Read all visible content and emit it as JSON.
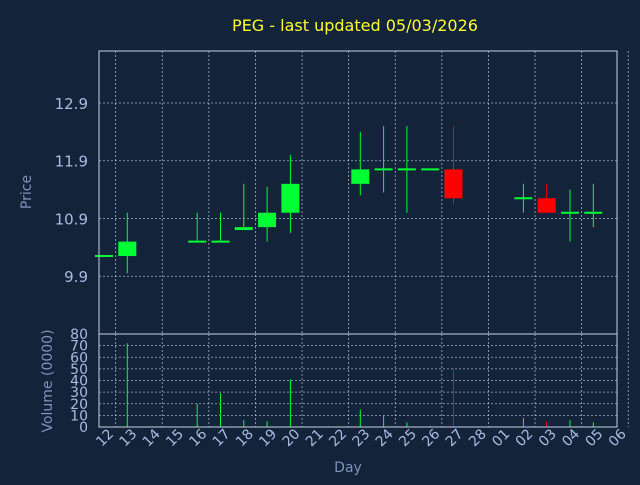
{
  "colors": {
    "background": "#12233a",
    "title": "#ffff33",
    "axis_label": "#7d93bb",
    "tick_label": "#a9bce0",
    "grid": "#c8d2e6",
    "frame": "#c8d2e6",
    "up": "#00ff33",
    "down": "#ff0000"
  },
  "chart_data": {
    "type": "candlestick",
    "title": "PEG - last updated 05/03/2026",
    "xlabel": "Day",
    "price_axis": {
      "label": "Price",
      "ylim": [
        8.9,
        13.8
      ],
      "ticks": [
        "9.9",
        "10.9",
        "11.9",
        "12.9"
      ]
    },
    "volume_axis": {
      "label": "Volume (0000)",
      "ylim": [
        0,
        80
      ],
      "ticks": [
        "0",
        "10",
        "20",
        "30",
        "40",
        "50",
        "60",
        "70",
        "80"
      ]
    },
    "x_ticks": [
      "12",
      "13",
      "14",
      "15",
      "16",
      "17",
      "18",
      "19",
      "20",
      "21",
      "22",
      "23",
      "24",
      "25",
      "26",
      "27",
      "28",
      "01",
      "02",
      "03",
      "04",
      "05",
      "06"
    ],
    "grid": true,
    "candles": [
      {
        "x": "12",
        "open": 10.25,
        "close": 10.25,
        "high": 10.25,
        "low": 10.25,
        "volume": 0
      },
      {
        "x": "13",
        "open": 10.25,
        "close": 10.5,
        "high": 11.0,
        "low": 9.95,
        "volume": 72
      },
      {
        "x": "16",
        "open": 10.5,
        "close": 10.5,
        "high": 11.0,
        "low": 10.5,
        "volume": 20
      },
      {
        "x": "17",
        "open": 10.5,
        "close": 10.5,
        "high": 11.0,
        "low": 10.5,
        "volume": 29
      },
      {
        "x": "18",
        "open": 10.7,
        "close": 10.75,
        "high": 11.5,
        "low": 10.7,
        "volume": 6
      },
      {
        "x": "19",
        "open": 10.75,
        "close": 11.0,
        "high": 11.45,
        "low": 10.5,
        "volume": 5
      },
      {
        "x": "20",
        "open": 11.0,
        "close": 11.5,
        "high": 12.0,
        "low": 10.65,
        "volume": 41
      },
      {
        "x": "23",
        "open": 11.5,
        "close": 11.75,
        "high": 12.4,
        "low": 11.3,
        "volume": 15
      },
      {
        "x": "24",
        "open": 11.75,
        "close": 11.75,
        "high": 12.5,
        "low": 11.35,
        "volume": 10
      },
      {
        "x": "25",
        "open": 11.75,
        "close": 11.75,
        "high": 12.5,
        "low": 11.0,
        "volume": 4
      },
      {
        "x": "26",
        "open": 11.75,
        "close": 11.75,
        "high": 11.75,
        "low": 11.75,
        "volume": 1
      },
      {
        "x": "27",
        "open": 11.75,
        "close": 11.25,
        "high": 12.5,
        "low": 11.15,
        "volume": 50
      },
      {
        "x": "02",
        "open": 11.25,
        "close": 11.25,
        "high": 11.5,
        "low": 11.0,
        "volume": 8
      },
      {
        "x": "03",
        "open": 11.25,
        "close": 11.0,
        "high": 11.5,
        "low": 11.0,
        "volume": 5
      },
      {
        "x": "04",
        "open": 11.0,
        "close": 11.0,
        "high": 11.4,
        "low": 10.5,
        "volume": 6
      },
      {
        "x": "05",
        "open": 11.0,
        "close": 11.0,
        "high": 11.5,
        "low": 10.75,
        "volume": 4
      }
    ]
  }
}
